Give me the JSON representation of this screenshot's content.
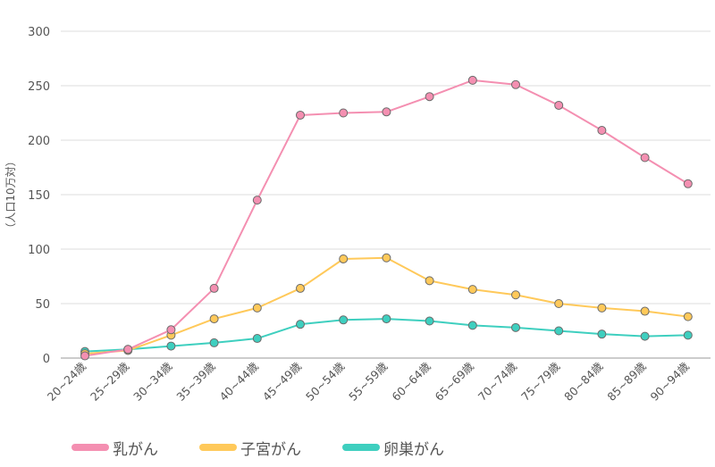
{
  "chart_data": {
    "type": "line",
    "ylabel": "（人口10万対）",
    "ylim": [
      0,
      300
    ],
    "yticks": [
      0,
      50,
      100,
      150,
      200,
      250,
      300
    ],
    "grid": true,
    "legend_position": "bottom-left",
    "categories": [
      "20~24歳",
      "25~29歳",
      "30~34歳",
      "35~39歳",
      "40~44歳",
      "45~49歳",
      "50~54歳",
      "55~59歳",
      "60~64歳",
      "65~69歳",
      "70~74歳",
      "75~79歳",
      "80~84歳",
      "85~89歳",
      "90~94歳"
    ],
    "series": [
      {
        "name": "乳がん",
        "color": "#f48fb1",
        "values": [
          2,
          8,
          26,
          64,
          145,
          223,
          225,
          226,
          240,
          255,
          251,
          232,
          209,
          184,
          160
        ]
      },
      {
        "name": "子宮がん",
        "color": "#ffc95a",
        "values": [
          4,
          7,
          21,
          36,
          46,
          64,
          91,
          92,
          71,
          63,
          58,
          50,
          46,
          43,
          38
        ]
      },
      {
        "name": "卵巣がん",
        "color": "#3ecfbf",
        "values": [
          6,
          8,
          11,
          14,
          18,
          31,
          35,
          36,
          34,
          30,
          28,
          25,
          22,
          20,
          21
        ]
      }
    ]
  }
}
